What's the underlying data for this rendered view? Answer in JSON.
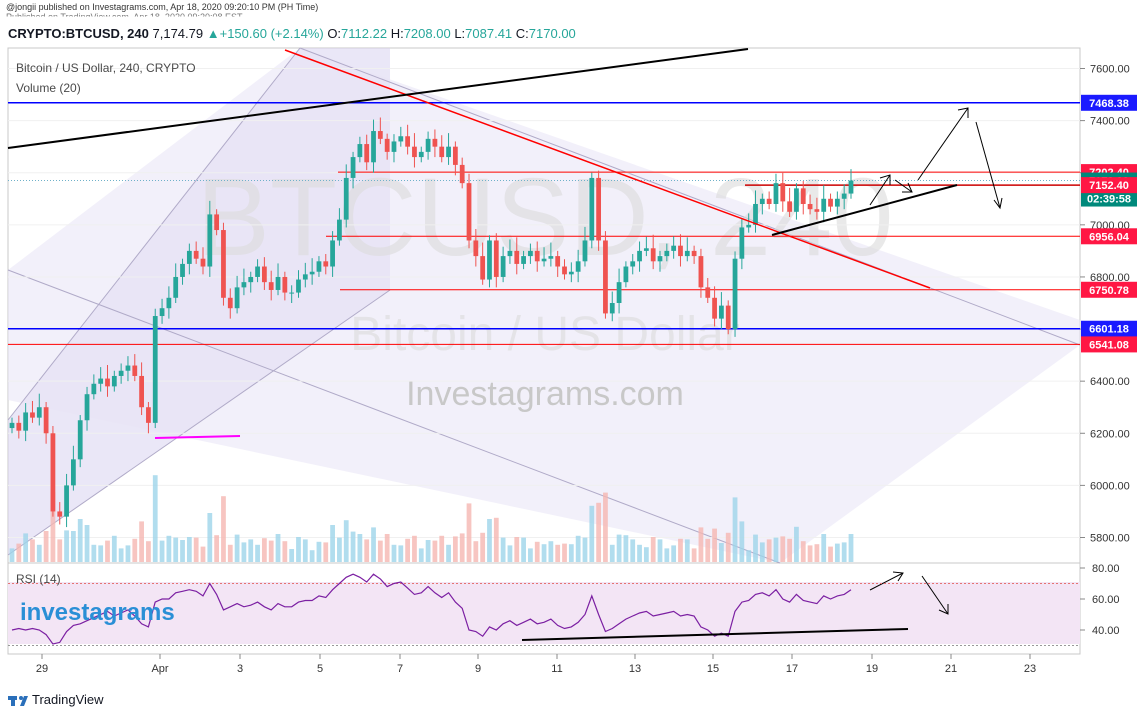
{
  "published": "@jongii published on Investagrams.com, Apr 18, 2020 09:20:10 PM (PH Time)",
  "published2": "Published on TradingView.com, Apr 18, 2020 09:20:08 EST",
  "header": {
    "symbol": "CRYPTO:BTCUSD, 240",
    "price": "7,174.79",
    "change": "+150.60 (+2.14%)",
    "o_label": "O:",
    "o": "7112.22",
    "h_label": "H:",
    "h": "7208.00",
    "l_label": "L:",
    "l": "7087.41",
    "c_label": "C:",
    "c": "7170.00"
  },
  "legend": {
    "title": "Bitcoin / US Dollar, 240, CRYPTO",
    "volume": "Volume (20)",
    "rsi": "RSI (14)"
  },
  "watermark": {
    "big": "BTCUSD, 240",
    "sub": "Bitcoin / US Dollar",
    "site": "Investagrams.com",
    "brand": "investagrams"
  },
  "footer": {
    "brand": "TradingView"
  },
  "colors": {
    "up": "#26a69a",
    "down": "#ef5350",
    "blue_line": "#0000ff",
    "red_trend": "#ff0000",
    "magenta": "#ff00ff",
    "rsi": "#7b1fa2"
  },
  "chart_data": {
    "type": "candlestick",
    "symbol": "BTCUSD",
    "interval": "240",
    "ylim": [
      5700,
      7650
    ],
    "y_ticks": [
      "7600.00",
      "7400.00",
      "7200.00",
      "7000.00",
      "6800.00",
      "6600.00",
      "6400.00",
      "6200.00",
      "6000.00",
      "5800.00"
    ],
    "x_ticks": [
      "29",
      "Apr",
      "3",
      "5",
      "7",
      "9",
      "11",
      "13",
      "15",
      "17",
      "19",
      "21",
      "23"
    ],
    "price_labels": [
      {
        "text": "7468.38",
        "value": 7468.38,
        "style": "blue"
      },
      {
        "text": "7202.40",
        "value": 7202.4,
        "style": "red"
      },
      {
        "text": "7170.00",
        "value": 7170.0,
        "style": "green"
      },
      {
        "text": "02:39:58",
        "value": 7110,
        "style": "green"
      },
      {
        "text": "7152.40",
        "value": 7152.4,
        "style": "red"
      },
      {
        "text": "6956.04",
        "value": 6956.04,
        "style": "red"
      },
      {
        "text": "6750.78",
        "value": 6750.78,
        "style": "red"
      },
      {
        "text": "6601.18",
        "value": 6601.18,
        "style": "blue"
      },
      {
        "text": "6541.08",
        "value": 6541.08,
        "style": "red"
      }
    ],
    "closes": [
      6240,
      6210,
      6280,
      6260,
      6300,
      6200,
      5900,
      5880,
      6000,
      6100,
      6250,
      6350,
      6390,
      6410,
      6380,
      6420,
      6440,
      6460,
      6420,
      6300,
      6240,
      6650,
      6680,
      6720,
      6800,
      6850,
      6900,
      6870,
      6840,
      7040,
      6980,
      6720,
      6680,
      6760,
      6780,
      6800,
      6840,
      6780,
      6750,
      6800,
      6740,
      6740,
      6790,
      6810,
      6820,
      6860,
      6840,
      6940,
      7020,
      7180,
      7260,
      7310,
      7240,
      7360,
      7330,
      7280,
      7320,
      7340,
      7300,
      7260,
      7280,
      7330,
      7300,
      7260,
      7300,
      7230,
      7160,
      6940,
      6880,
      6790,
      6940,
      6800,
      6880,
      6900,
      6850,
      6880,
      6900,
      6860,
      6870,
      6880,
      6840,
      6810,
      6820,
      6860,
      6940,
      7180,
      6940,
      6660,
      6700,
      6780,
      6840,
      6860,
      6900,
      6910,
      6860,
      6880,
      6900,
      6920,
      6880,
      6900,
      6880,
      6760,
      6720,
      6640,
      6690,
      6600,
      6870,
      6990,
      7000,
      7080,
      7100,
      7080,
      7160,
      7090,
      7050,
      7140,
      7080,
      7060,
      7050,
      7100,
      7070,
      7100,
      7120,
      7170
    ],
    "rsi": {
      "ylim": [
        25,
        80
      ],
      "ticks": [
        "80.00",
        "60.00",
        "40.00"
      ],
      "upper": 70,
      "lower": 30,
      "values": [
        40,
        41,
        40,
        41,
        40,
        37,
        31,
        32,
        39,
        43,
        44,
        46,
        48,
        50,
        52,
        49,
        51,
        53,
        49,
        44,
        42,
        58,
        60,
        60,
        64,
        65,
        66,
        65,
        62,
        70,
        63,
        53,
        55,
        57,
        55,
        56,
        58,
        55,
        53,
        57,
        55,
        55,
        58,
        59,
        59,
        62,
        61,
        66,
        70,
        74,
        76,
        74,
        71,
        76,
        73,
        68,
        70,
        71,
        67,
        63,
        64,
        68,
        64,
        61,
        64,
        58,
        54,
        40,
        39,
        36,
        42,
        40,
        44,
        46,
        43,
        45,
        47,
        44,
        45,
        47,
        43,
        41,
        42,
        45,
        50,
        62,
        50,
        39,
        41,
        44,
        47,
        49,
        51,
        52,
        49,
        50,
        51,
        52,
        49,
        50,
        49,
        42,
        40,
        36,
        38,
        36,
        52,
        58,
        59,
        63,
        64,
        62,
        66,
        60,
        58,
        63,
        59,
        58,
        57,
        62,
        60,
        62,
        63,
        66
      ]
    }
  }
}
